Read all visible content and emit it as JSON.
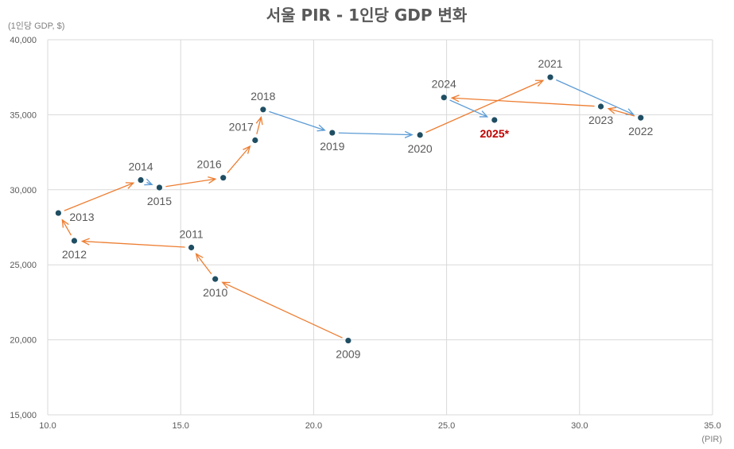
{
  "chart_data": {
    "type": "scatter",
    "title": "서울 PIR - 1인당 GDP 변화",
    "y_unit_label": "(1인당 GDP, $)",
    "x_unit_label": "(PIR)",
    "xlim": [
      10.0,
      35.0
    ],
    "ylim": [
      15000,
      40000
    ],
    "x_ticks": [
      "10.0",
      "15.0",
      "20.0",
      "25.0",
      "30.0",
      "35.0"
    ],
    "y_ticks": [
      "15,000",
      "20,000",
      "25,000",
      "30,000",
      "35,000",
      "40,000"
    ],
    "grid": true,
    "colors": {
      "point": "#1f4e63",
      "arrow_decrease": "#5b9bd5",
      "arrow_increase": "#ed7d31",
      "highlight_label": "#c00000",
      "grid": "#d9d9d9",
      "text": "#595959"
    },
    "points": [
      {
        "label": "2009",
        "x": 21.3,
        "y": 19950,
        "pos": "below"
      },
      {
        "label": "2010",
        "x": 16.3,
        "y": 24050,
        "pos": "below"
      },
      {
        "label": "2011",
        "x": 15.4,
        "y": 26150,
        "pos": "above"
      },
      {
        "label": "2012",
        "x": 11.0,
        "y": 26600,
        "pos": "below"
      },
      {
        "label": "2013",
        "x": 10.4,
        "y": 28450,
        "pos": "below-right"
      },
      {
        "label": "2014",
        "x": 13.5,
        "y": 30650,
        "pos": "above"
      },
      {
        "label": "2015",
        "x": 14.2,
        "y": 30150,
        "pos": "below"
      },
      {
        "label": "2016",
        "x": 16.6,
        "y": 30800,
        "pos": "above-left"
      },
      {
        "label": "2017",
        "x": 17.8,
        "y": 33300,
        "pos": "above-left"
      },
      {
        "label": "2018",
        "x": 18.1,
        "y": 35350,
        "pos": "above"
      },
      {
        "label": "2019",
        "x": 20.7,
        "y": 33800,
        "pos": "below"
      },
      {
        "label": "2020",
        "x": 24.0,
        "y": 33650,
        "pos": "below"
      },
      {
        "label": "2021",
        "x": 28.9,
        "y": 37500,
        "pos": "above"
      },
      {
        "label": "2022",
        "x": 32.3,
        "y": 34800,
        "pos": "below"
      },
      {
        "label": "2023",
        "x": 30.8,
        "y": 35550,
        "pos": "below"
      },
      {
        "label": "2024",
        "x": 24.9,
        "y": 36150,
        "pos": "above"
      },
      {
        "label": "2025*",
        "x": 26.8,
        "y": 34650,
        "pos": "below",
        "highlight": true
      }
    ]
  }
}
